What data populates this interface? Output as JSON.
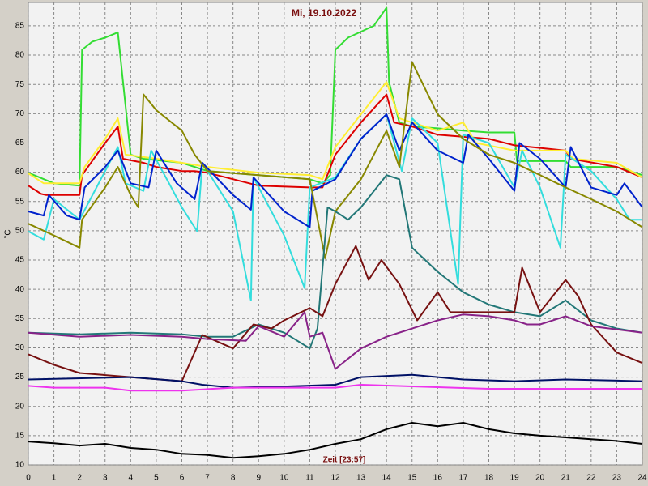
{
  "chart_data": {
    "type": "line",
    "title": "Mi, 19.10.2022",
    "y_label": "°C",
    "annotation": "Zeit [23:57]",
    "xlim": [
      0,
      24
    ],
    "xticks": [
      0,
      1,
      2,
      3,
      4,
      5,
      6,
      7,
      8,
      9,
      10,
      11,
      12,
      13,
      14,
      15,
      16,
      17,
      18,
      19,
      20,
      21,
      22,
      23,
      24
    ],
    "ylim": [
      10,
      89
    ],
    "yticks": [
      10,
      15,
      20,
      25,
      30,
      35,
      40,
      45,
      50,
      55,
      60,
      65,
      70,
      75,
      80,
      85
    ],
    "grid": true,
    "series": [
      {
        "color": "#33dd33",
        "x": [
          0,
          1,
          2,
          2.1,
          2.5,
          3,
          3.5,
          3.7,
          4,
          4.5,
          6,
          7,
          9,
          11,
          11.5,
          11.8,
          12,
          12.5,
          13.5,
          14,
          14.1,
          14.5,
          15,
          16,
          17,
          18,
          19,
          19.1,
          20,
          21,
          21.2,
          23,
          24
        ],
        "values": [
          59.9,
          58.1,
          57.7,
          80.9,
          82.3,
          83.0,
          83.9,
          75.4,
          63.0,
          62.3,
          61.6,
          60.2,
          59.5,
          58.8,
          58.1,
          59.5,
          80.9,
          83.0,
          85.0,
          88.1,
          75.4,
          68.5,
          67.8,
          67.5,
          67.1,
          66.8,
          66.8,
          61.9,
          61.9,
          61.9,
          60.9,
          60.9,
          59.5
        ]
      },
      {
        "color": "#dd0000",
        "x": [
          0,
          0.5,
          0.7,
          2,
          2.1,
          3,
          3.5,
          3.7,
          4.5,
          5,
          6,
          6.5,
          7,
          9,
          11,
          11.5,
          12,
          13,
          14,
          14.3,
          15,
          16,
          18,
          19,
          21,
          21.2,
          23,
          24
        ],
        "values": [
          57.7,
          56.3,
          56.1,
          56.1,
          59.5,
          65.0,
          67.8,
          62.3,
          61.6,
          60.9,
          60.2,
          60.2,
          59.9,
          57.7,
          57.4,
          57.4,
          63.0,
          68.5,
          73.3,
          68.5,
          67.8,
          66.4,
          65.7,
          64.6,
          63.7,
          62.3,
          60.9,
          59.1
        ]
      },
      {
        "color": "#ffee33",
        "x": [
          0,
          0.6,
          2,
          2.2,
          3,
          3.5,
          3.8,
          5,
          7,
          9,
          11,
          11.5,
          12,
          13,
          14,
          14.5,
          16,
          17,
          17.5,
          19,
          21,
          21.3,
          23,
          24
        ],
        "values": [
          59.8,
          58.1,
          58.1,
          60.9,
          65.7,
          69.2,
          63.0,
          62.3,
          60.9,
          59.9,
          59.5,
          58.8,
          64.3,
          69.9,
          75.4,
          69.2,
          67.1,
          68.5,
          65.0,
          63.7,
          63.7,
          62.3,
          61.6,
          59.1
        ]
      },
      {
        "color": "#33dddd",
        "x": [
          0,
          0.6,
          1,
          2,
          3,
          3.5,
          3.8,
          4.5,
          4.8,
          5.5,
          6,
          6.6,
          6.8,
          8,
          8.7,
          8.8,
          10,
          10.8,
          11,
          12,
          13,
          14,
          14.6,
          15,
          16,
          16.8,
          17,
          18,
          19,
          19.3,
          20,
          20.8,
          21,
          22,
          23,
          23.5,
          24
        ],
        "values": [
          49.9,
          48.5,
          55.4,
          51.9,
          60.2,
          64.3,
          58.1,
          56.8,
          63.7,
          58.1,
          54.0,
          49.9,
          61.6,
          53.3,
          38.1,
          59.1,
          49.2,
          40.2,
          57.4,
          59.1,
          65.7,
          69.9,
          60.2,
          69.2,
          65.0,
          40.9,
          66.4,
          65.0,
          57.4,
          63.7,
          57.4,
          47.1,
          63.0,
          60.2,
          55.4,
          51.9,
          51.9
        ]
      },
      {
        "color": "#0022cc",
        "x": [
          0,
          0.6,
          0.8,
          1.5,
          2,
          2.2,
          3,
          3.5,
          4,
          4.7,
          5,
          5.8,
          6.5,
          6.8,
          8,
          8.7,
          8.8,
          10,
          11,
          11.1,
          12,
          13,
          14,
          14.5,
          15,
          16,
          17,
          17.2,
          18,
          19,
          19.2,
          20,
          21,
          21.2,
          22,
          23,
          23.3,
          24
        ],
        "values": [
          53.3,
          52.6,
          56.1,
          52.6,
          51.9,
          57.4,
          60.9,
          63.7,
          58.1,
          57.4,
          63.7,
          58.1,
          55.4,
          61.6,
          56.1,
          53.6,
          59.1,
          53.3,
          50.6,
          56.8,
          58.8,
          65.7,
          69.9,
          63.7,
          68.5,
          63.7,
          61.6,
          66.4,
          62.3,
          56.8,
          65.0,
          62.3,
          57.4,
          64.3,
          57.4,
          56.1,
          58.1,
          54.0
        ]
      },
      {
        "color": "#888800",
        "x": [
          0,
          1,
          2,
          2.1,
          3,
          3.5,
          4,
          4.3,
          4.5,
          5,
          6,
          6.5,
          7,
          9,
          11,
          11.6,
          12,
          13,
          14,
          14.5,
          15,
          16,
          17,
          18,
          19,
          20,
          21,
          22,
          23,
          24
        ],
        "values": [
          51.2,
          49.2,
          47.1,
          51.9,
          57.4,
          60.9,
          56.1,
          54.0,
          73.3,
          70.6,
          67.1,
          63.0,
          60.2,
          59.5,
          58.8,
          45.3,
          53.3,
          58.8,
          67.1,
          60.9,
          78.8,
          69.9,
          65.7,
          63.0,
          61.6,
          59.5,
          57.4,
          55.4,
          53.3,
          50.6
        ]
      },
      {
        "color": "#227777",
        "x": [
          0,
          2,
          4,
          6,
          7,
          8,
          9,
          10,
          11,
          11.3,
          11.7,
          12,
          12.5,
          13,
          14,
          14.5,
          15,
          16,
          17,
          18,
          19,
          20,
          21,
          22,
          23,
          24
        ],
        "values": [
          32.6,
          32.3,
          32.6,
          32.3,
          31.9,
          31.9,
          34.0,
          32.6,
          29.9,
          33.3,
          54.0,
          53.3,
          51.9,
          54.0,
          59.5,
          58.8,
          47.1,
          43.0,
          39.5,
          37.4,
          36.1,
          35.4,
          38.1,
          34.7,
          33.3,
          32.6
        ]
      },
      {
        "color": "#771111",
        "x": [
          0,
          1,
          2,
          4,
          6,
          6.8,
          8,
          8.8,
          9.5,
          10,
          11,
          11.5,
          12,
          12.8,
          13.3,
          13.8,
          14.5,
          15.2,
          16,
          16.5,
          18,
          19,
          19.3,
          20,
          21,
          21.5,
          22,
          23,
          24
        ],
        "values": [
          28.9,
          27.1,
          25.7,
          25.0,
          24.3,
          32.2,
          29.9,
          34.0,
          33.3,
          34.7,
          36.8,
          35.4,
          40.9,
          47.4,
          41.6,
          45.0,
          40.9,
          34.7,
          39.5,
          36.1,
          36.1,
          36.1,
          43.7,
          36.1,
          41.6,
          38.8,
          34.0,
          29.2,
          27.4
        ]
      },
      {
        "color": "#882288",
        "x": [
          0,
          2,
          4,
          6,
          7,
          8.5,
          9,
          10,
          10.8,
          11,
          11.5,
          12,
          13,
          14,
          15,
          16,
          17,
          18,
          19,
          19.5,
          20,
          21,
          22,
          24
        ],
        "values": [
          32.6,
          31.9,
          32.2,
          31.9,
          31.5,
          31.2,
          33.7,
          31.9,
          36.1,
          31.9,
          32.6,
          26.4,
          29.9,
          31.9,
          33.3,
          34.7,
          35.7,
          35.4,
          34.7,
          34.0,
          34.0,
          35.4,
          33.7,
          32.6
        ]
      },
      {
        "color": "#001166",
        "x": [
          0,
          4,
          6,
          6.8,
          8,
          10,
          12,
          13,
          15,
          17,
          19,
          21,
          24
        ],
        "values": [
          24.6,
          25.0,
          24.3,
          23.7,
          23.2,
          23.4,
          23.7,
          25.0,
          25.4,
          24.6,
          24.3,
          24.6,
          24.3
        ]
      },
      {
        "color": "#ee33ee",
        "x": [
          0,
          1,
          3,
          4,
          6,
          8,
          12,
          13,
          18,
          24
        ],
        "values": [
          23.5,
          23.2,
          23.2,
          22.7,
          22.7,
          23.2,
          23.2,
          23.7,
          23.0,
          23.0
        ]
      },
      {
        "color": "#000000",
        "x": [
          0,
          1,
          2,
          3,
          4,
          5,
          6,
          7,
          8,
          9,
          10,
          11,
          12,
          13,
          14,
          15,
          16,
          17,
          18,
          19,
          20,
          21,
          22,
          23,
          24
        ],
        "values": [
          14.0,
          13.7,
          13.3,
          13.6,
          12.9,
          12.6,
          11.9,
          11.7,
          11.2,
          11.5,
          11.9,
          12.6,
          13.6,
          14.4,
          16.1,
          17.2,
          16.6,
          17.2,
          16.1,
          15.4,
          15.0,
          14.7,
          14.4,
          14.1,
          13.6
        ]
      }
    ]
  }
}
